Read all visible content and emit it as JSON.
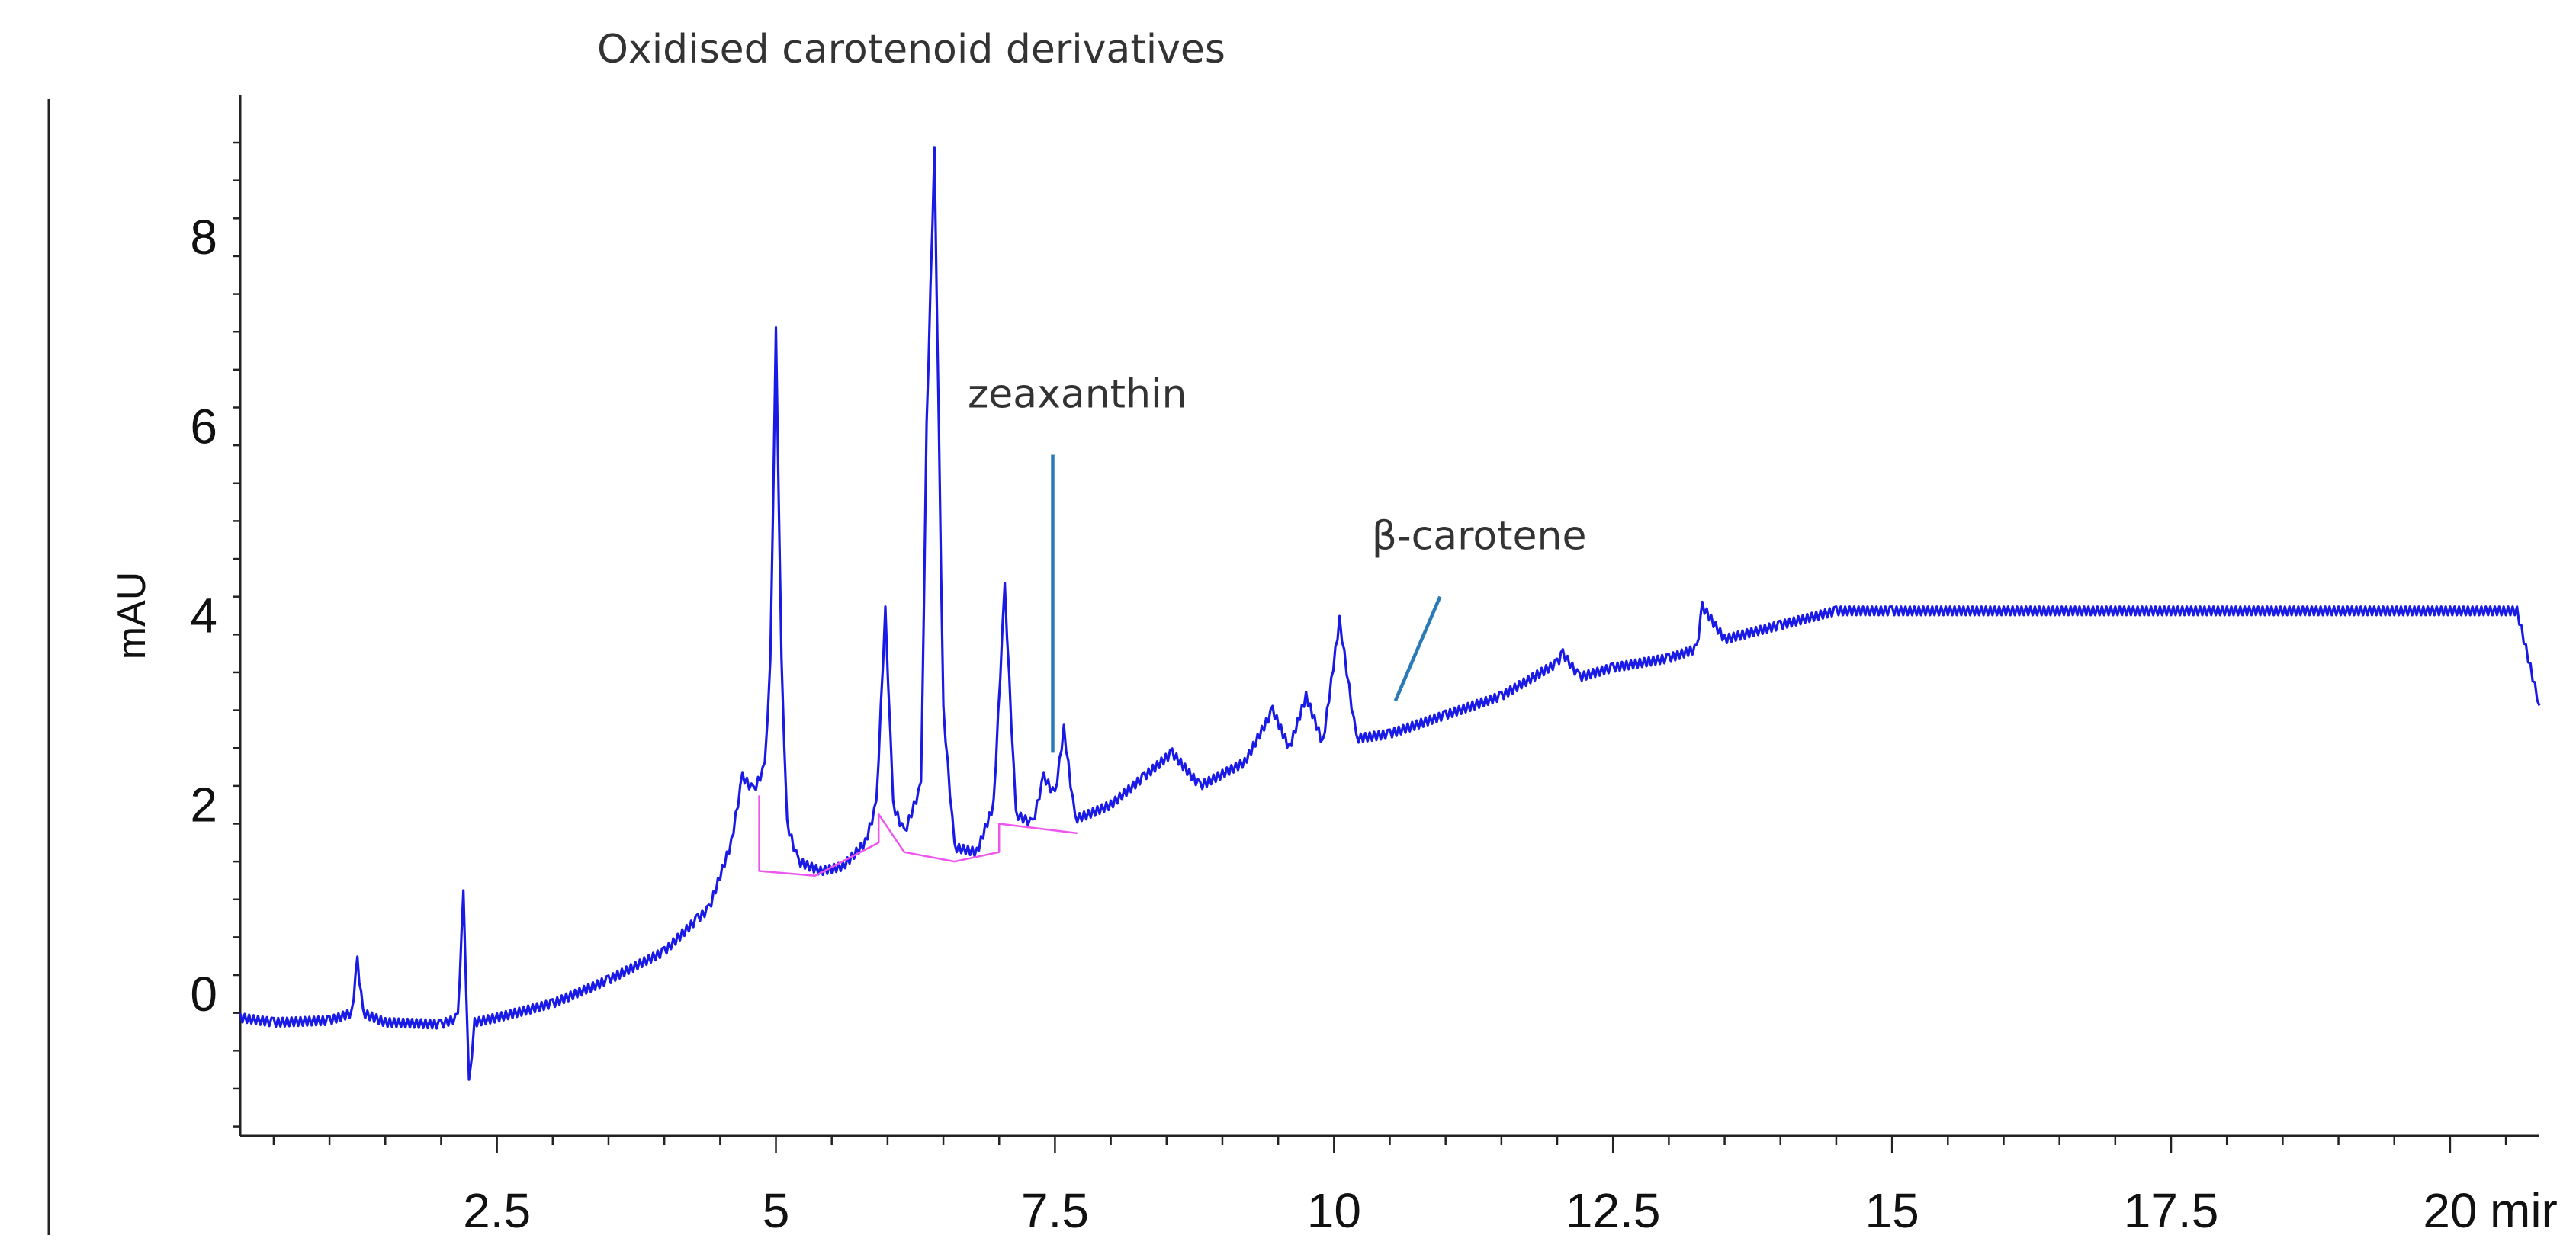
{
  "chart_data": {
    "type": "line",
    "title": "Oxidised carotenoid derivatives",
    "xlabel": "",
    "ylabel": "mAU",
    "x_unit_label": "mir",
    "xlim": [
      0.2,
      20.8
    ],
    "ylim": [
      -1.5,
      9.5
    ],
    "grid": false,
    "x_ticks": [
      2.5,
      5,
      7.5,
      10,
      12.5,
      15,
      17.5,
      20
    ],
    "x_tick_labels": [
      "2.5",
      "5",
      "7.5",
      "10",
      "12.5",
      "15",
      "17.5",
      "20"
    ],
    "y_ticks": [
      0,
      2,
      4,
      6,
      8
    ],
    "y_tick_labels": [
      "0",
      "2",
      "4",
      "6",
      "8"
    ],
    "series": [
      {
        "color": "#1a1ae6",
        "x": [
          0.2,
          0.5,
          1.0,
          1.2,
          1.25,
          1.3,
          1.5,
          2.0,
          2.15,
          2.2,
          2.25,
          2.3,
          2.5,
          3.0,
          3.5,
          4.0,
          4.3,
          4.4,
          4.6,
          4.7,
          4.8,
          4.9,
          4.95,
          5.0,
          5.05,
          5.1,
          5.2,
          5.4,
          5.6,
          5.8,
          5.9,
          5.98,
          6.05,
          6.15,
          6.3,
          6.35,
          6.42,
          6.5,
          6.6,
          6.8,
          6.95,
          7.05,
          7.15,
          7.3,
          7.4,
          7.5,
          7.58,
          7.68,
          7.8,
          8.0,
          8.3,
          8.55,
          8.8,
          9.2,
          9.45,
          9.6,
          9.75,
          9.9,
          10.05,
          10.2,
          10.5,
          11.0,
          11.5,
          12.0,
          12.05,
          12.2,
          12.5,
          13.0,
          13.25,
          13.3,
          13.5,
          14.0,
          14.5,
          15.0,
          16.0,
          17.0,
          18.0,
          19.0,
          20.0,
          20.6,
          20.8
        ],
        "y": [
          -0.25,
          -0.3,
          -0.28,
          -0.2,
          0.35,
          -0.2,
          -0.3,
          -0.32,
          -0.25,
          1.05,
          -0.95,
          -0.3,
          -0.25,
          -0.1,
          0.15,
          0.45,
          0.8,
          0.9,
          1.6,
          2.3,
          2.15,
          2.4,
          3.5,
          7.0,
          3.5,
          1.8,
          1.4,
          1.3,
          1.35,
          1.6,
          2.0,
          4.05,
          2.0,
          1.7,
          2.2,
          6.0,
          8.9,
          3.0,
          1.55,
          1.5,
          2.0,
          4.3,
          1.9,
          1.8,
          2.3,
          2.1,
          2.8,
          1.85,
          1.9,
          2.0,
          2.3,
          2.55,
          2.2,
          2.45,
          3.0,
          2.6,
          3.15,
          2.65,
          3.95,
          2.7,
          2.75,
          2.95,
          3.15,
          3.5,
          3.6,
          3.35,
          3.45,
          3.55,
          3.65,
          4.1,
          3.75,
          3.9,
          4.05,
          4.05,
          4.05,
          4.05,
          4.05,
          4.05,
          4.05,
          4.05,
          3.05
        ]
      },
      {
        "color": "#ee55ee",
        "x": [
          4.85,
          4.85,
          5.35,
          5.92,
          5.92,
          6.15,
          6.6,
          7.0,
          7.0,
          7.7
        ],
        "y": [
          2.1,
          1.3,
          1.25,
          1.6,
          1.9,
          1.5,
          1.4,
          1.5,
          1.8,
          1.7
        ]
      }
    ],
    "annotations": [
      {
        "text": "zeaxanthin",
        "label_x": 7.7,
        "label_y": 6.2,
        "line_from": [
          7.48,
          5.7
        ],
        "line_to": [
          7.48,
          2.55
        ]
      },
      {
        "text": "β-carotene",
        "label_x": 11.3,
        "label_y": 4.7,
        "line_from": [
          10.95,
          4.2
        ],
        "line_to": [
          10.55,
          3.1
        ]
      }
    ],
    "colors": {
      "signal": "#1a1ae6",
      "baseline": "#ee55ee",
      "pointer": "#2a7ab8",
      "axis": "#222222"
    }
  }
}
